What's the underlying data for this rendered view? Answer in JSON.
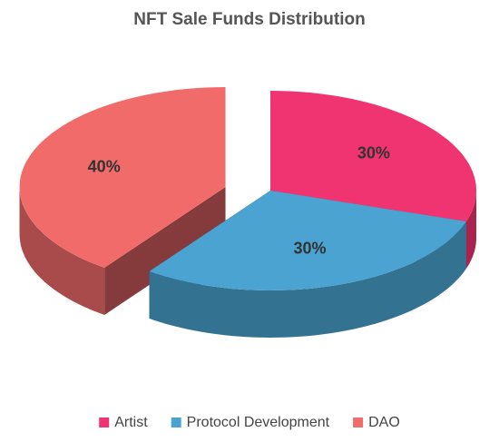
{
  "chart_data": {
    "type": "pie",
    "title": "NFT Sale Funds Distribution",
    "categories": [
      "Artist",
      "Protocol Development",
      "DAO"
    ],
    "values": [
      30,
      30,
      40
    ],
    "value_labels": [
      "30%",
      "30%",
      "40%"
    ],
    "colors": [
      "#f03371",
      "#4aa3d1",
      "#f26b6b"
    ],
    "legend": "bottom"
  }
}
